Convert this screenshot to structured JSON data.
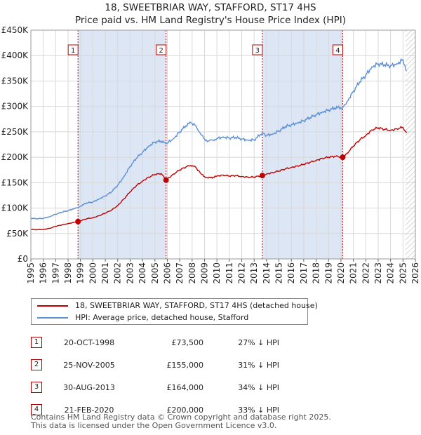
{
  "title_line1": "18, SWEETBRIAR WAY, STAFFORD, ST17 4HS",
  "title_line2": "Price paid vs. HM Land Registry's House Price Index (HPI)",
  "legend": {
    "property_label": "18, SWEETBRIAR WAY, STAFFORD, ST17 4HS (detached house)",
    "hpi_label": "HPI: Average price, detached house, Stafford"
  },
  "colors": {
    "property": "#c00000",
    "hpi": "#5b8fd6",
    "sale_band": "#dce6f5",
    "grid": "#d8d8d8",
    "hatch": "#c8c8c8"
  },
  "sales": [
    {
      "num": "1",
      "date": "20-OCT-1998",
      "price": "£73,500",
      "hpi_diff": "27% ↓ HPI"
    },
    {
      "num": "2",
      "date": "25-NOV-2005",
      "price": "£155,000",
      "hpi_diff": "31% ↓ HPI"
    },
    {
      "num": "3",
      "date": "30-AUG-2013",
      "price": "£164,000",
      "hpi_diff": "34% ↓ HPI"
    },
    {
      "num": "4",
      "date": "21-FEB-2020",
      "price": "£200,000",
      "hpi_diff": "33% ↓ HPI"
    }
  ],
  "footer": {
    "line1": "Contains HM Land Registry data © Crown copyright and database right 2025.",
    "line2": "This data is licensed under the Open Government Licence v3.0."
  },
  "chart_data": {
    "type": "line",
    "title": "Price paid vs. HM Land Registry's House Price Index (HPI)",
    "xlabel": "",
    "ylabel": "",
    "xlim": [
      1995,
      2026
    ],
    "ylim": [
      0,
      450000
    ],
    "y_ticks": [
      {
        "value": 0,
        "label": "£0"
      },
      {
        "value": 50000,
        "label": "£50K"
      },
      {
        "value": 100000,
        "label": "£100K"
      },
      {
        "value": 150000,
        "label": "£150K"
      },
      {
        "value": 200000,
        "label": "£200K"
      },
      {
        "value": 250000,
        "label": "£250K"
      },
      {
        "value": 300000,
        "label": "£300K"
      },
      {
        "value": 350000,
        "label": "£350K"
      },
      {
        "value": 400000,
        "label": "£400K"
      },
      {
        "value": 450000,
        "label": "£450K"
      }
    ],
    "x_ticks": [
      "1995",
      "1996",
      "1997",
      "1998",
      "1999",
      "2000",
      "2001",
      "2002",
      "2003",
      "2004",
      "2005",
      "2006",
      "2007",
      "2008",
      "2009",
      "2010",
      "2011",
      "2012",
      "2013",
      "2014",
      "2015",
      "2016",
      "2017",
      "2018",
      "2019",
      "2020",
      "2021",
      "2022",
      "2023",
      "2024",
      "2025",
      "2026"
    ],
    "forecast_from": 2025.2,
    "sale_points": [
      {
        "label": "1",
        "x": 1998.8,
        "y": 73500
      },
      {
        "label": "2",
        "x": 2005.9,
        "y": 155000
      },
      {
        "label": "3",
        "x": 2013.66,
        "y": 164000
      },
      {
        "label": "4",
        "x": 2020.14,
        "y": 200000
      }
    ],
    "series": [
      {
        "name": "HPI: Average price, detached house, Stafford",
        "x": [
          1995.0,
          1995.5,
          1996.0,
          1996.5,
          1997.0,
          1997.5,
          1998.0,
          1998.5,
          1998.8,
          1999.0,
          1999.5,
          2000.0,
          2000.5,
          2001.0,
          2001.5,
          2002.0,
          2002.5,
          2003.0,
          2003.5,
          2004.0,
          2004.5,
          2005.0,
          2005.5,
          2005.9,
          2006.5,
          2007.0,
          2007.5,
          2007.9,
          2008.3,
          2008.7,
          2009.0,
          2009.3,
          2009.7,
          2010.0,
          2010.5,
          2011.0,
          2011.5,
          2012.0,
          2012.5,
          2013.0,
          2013.66,
          2014.0,
          2014.5,
          2015.0,
          2015.5,
          2016.0,
          2016.5,
          2017.0,
          2017.5,
          2018.0,
          2018.5,
          2019.0,
          2019.5,
          2020.14,
          2020.5,
          2021.0,
          2021.5,
          2022.0,
          2022.5,
          2023.0,
          2023.5,
          2024.0,
          2024.5,
          2025.0,
          2025.3
        ],
        "values": [
          80000,
          79000,
          80000,
          83000,
          88000,
          92000,
          95000,
          99000,
          101000,
          104000,
          110000,
          112000,
          118000,
          124000,
          132000,
          145000,
          162000,
          182000,
          198000,
          210000,
          222000,
          230000,
          232000,
          226000,
          237000,
          250000,
          262000,
          268000,
          262000,
          245000,
          236000,
          232000,
          234000,
          237000,
          240000,
          238000,
          239000,
          236000,
          234000,
          234000,
          248000,
          243000,
          246000,
          252000,
          260000,
          264000,
          268000,
          272000,
          278000,
          284000,
          289000,
          293000,
          297000,
          298000,
          310000,
          330000,
          348000,
          362000,
          378000,
          384000,
          382000,
          380000,
          384000,
          392000,
          370000
        ]
      },
      {
        "name": "18, SWEETBRIAR WAY, STAFFORD, ST17 4HS (detached house)",
        "x": [
          1995.0,
          1995.5,
          1996.0,
          1996.5,
          1997.0,
          1997.5,
          1998.0,
          1998.5,
          1998.8,
          1999.0,
          1999.5,
          2000.0,
          2000.5,
          2001.0,
          2001.5,
          2002.0,
          2002.5,
          2003.0,
          2003.5,
          2004.0,
          2004.5,
          2005.0,
          2005.5,
          2005.9,
          2006.5,
          2007.0,
          2007.5,
          2007.9,
          2008.3,
          2008.7,
          2009.0,
          2009.3,
          2009.7,
          2010.0,
          2010.5,
          2011.0,
          2011.5,
          2012.0,
          2012.5,
          2013.0,
          2013.66,
          2014.0,
          2014.5,
          2015.0,
          2015.5,
          2016.0,
          2016.5,
          2017.0,
          2017.5,
          2018.0,
          2018.5,
          2019.0,
          2019.5,
          2020.14,
          2020.5,
          2021.0,
          2021.5,
          2022.0,
          2022.5,
          2023.0,
          2023.5,
          2024.0,
          2024.5,
          2025.0,
          2025.3
        ],
        "values": [
          58000,
          57500,
          58000,
          60000,
          64000,
          67000,
          69500,
          72000,
          73500,
          75000,
          79000,
          81000,
          85000,
          90000,
          96000,
          105000,
          118000,
          132000,
          144000,
          153000,
          161000,
          166000,
          168000,
          155000,
          167000,
          175000,
          181000,
          184000,
          180000,
          168000,
          162000,
          159000,
          161000,
          163000,
          165000,
          163000,
          164000,
          162000,
          161000,
          161000,
          164000,
          167000,
          170000,
          173000,
          177000,
          180000,
          183000,
          186000,
          190000,
          194000,
          198000,
          200000,
          202000,
          200000,
          208000,
          222000,
          234000,
          243000,
          254000,
          258000,
          255000,
          253000,
          256000,
          259000,
          248000
        ]
      }
    ]
  }
}
